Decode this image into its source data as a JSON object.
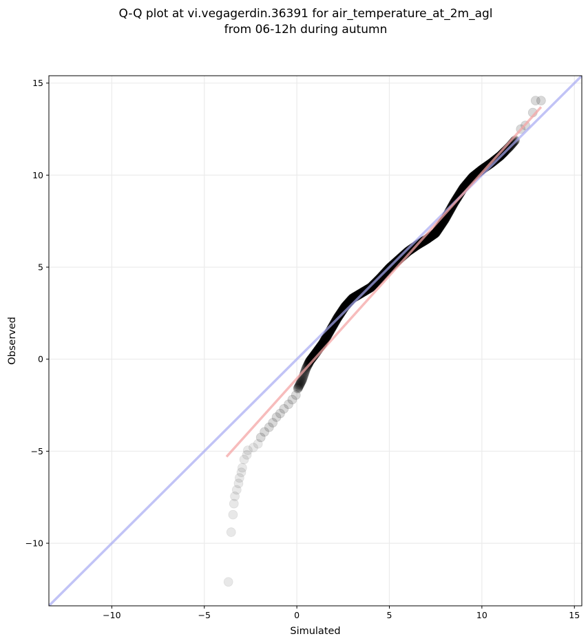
{
  "chart_data": {
    "type": "scatter",
    "title_lines": [
      "Q-Q plot at vi.vegagerdin.36391 for air_temperature_at_2m_agl",
      "from 06-12h during autumn"
    ],
    "xlabel": "Simulated",
    "ylabel": "Observed",
    "xlim": [
      -13.4,
      15.4
    ],
    "ylim": [
      -13.4,
      15.4
    ],
    "x_ticks": [
      -10,
      -5,
      0,
      5,
      10,
      15
    ],
    "y_ticks": [
      -10,
      -5,
      0,
      5,
      10,
      15
    ],
    "x_tick_labels": [
      "−10",
      "−5",
      "0",
      "5",
      "10",
      "15"
    ],
    "y_tick_labels": [
      "−10",
      "−5",
      "0",
      "5",
      "10",
      "15"
    ],
    "grid": true,
    "reference_line": {
      "x": [
        -13.4,
        15.4
      ],
      "y": [
        -13.4,
        15.4
      ],
      "color": "#a7a9f2"
    },
    "fit_line": {
      "x": [
        -3.8,
        13.2
      ],
      "y": [
        -5.3,
        13.7
      ],
      "color": "#f4a6a6"
    },
    "point_color": "#000000",
    "tail_points": [
      [
        -3.7,
        -12.1
      ],
      [
        -3.55,
        -9.4
      ],
      [
        -3.45,
        -8.45
      ],
      [
        -3.4,
        -7.85
      ],
      [
        -3.35,
        -7.45
      ],
      [
        -3.25,
        -7.1
      ],
      [
        -3.15,
        -6.75
      ],
      [
        -3.1,
        -6.45
      ],
      [
        -3.0,
        -6.15
      ],
      [
        -2.95,
        -5.9
      ],
      [
        -2.85,
        -5.45
      ],
      [
        -2.7,
        -5.2
      ],
      [
        -2.65,
        -4.95
      ],
      [
        -2.35,
        -4.8
      ],
      [
        -2.1,
        -4.6
      ],
      [
        -1.95,
        -4.25
      ],
      [
        -1.75,
        -3.95
      ],
      [
        -1.5,
        -3.7
      ],
      [
        -1.3,
        -3.45
      ],
      [
        -1.1,
        -3.15
      ],
      [
        -0.9,
        -2.95
      ],
      [
        -0.7,
        -2.7
      ],
      [
        -0.45,
        -2.45
      ],
      [
        -0.25,
        -2.2
      ],
      [
        -0.05,
        -1.95
      ],
      [
        12.1,
        12.5
      ],
      [
        12.35,
        12.7
      ],
      [
        12.75,
        13.4
      ],
      [
        12.9,
        14.05
      ],
      [
        13.2,
        14.05
      ]
    ],
    "body_curve": {
      "x": [
        0.05,
        0.3,
        0.5,
        0.7,
        1.0,
        1.4,
        1.8,
        2.2,
        2.6,
        3.0,
        3.5,
        4.0,
        4.5,
        5.0,
        5.5,
        6.0,
        6.5,
        7.0,
        7.5,
        8.0,
        8.5,
        9.0,
        9.5,
        10.0,
        10.5,
        11.0,
        11.5,
        11.8
      ],
      "y": [
        -1.6,
        -1.1,
        -0.5,
        -0.1,
        0.3,
        0.85,
        1.55,
        2.25,
        2.85,
        3.3,
        3.6,
        3.9,
        4.4,
        4.95,
        5.4,
        5.85,
        6.2,
        6.5,
        6.85,
        7.6,
        8.5,
        9.3,
        9.9,
        10.3,
        10.65,
        11.05,
        11.55,
        11.9
      ]
    },
    "body_point_count": 520
  }
}
